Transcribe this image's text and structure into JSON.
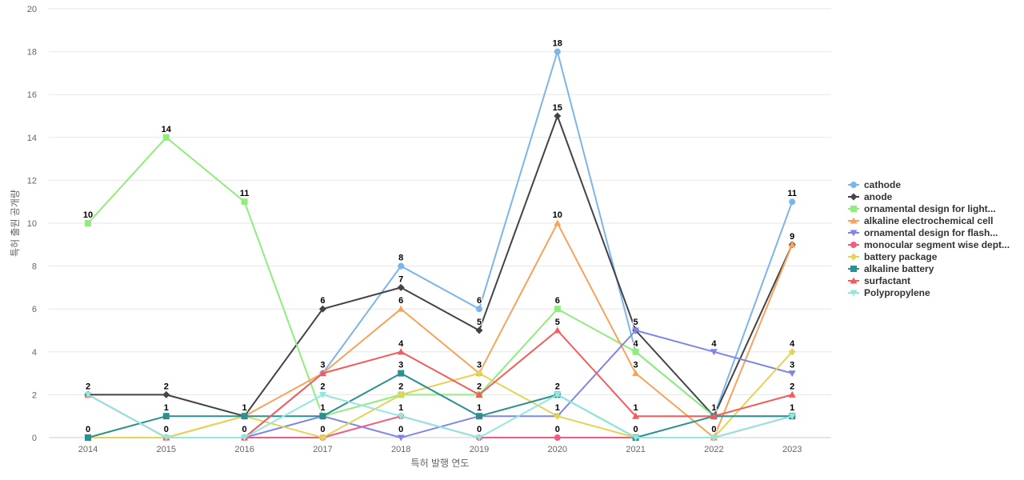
{
  "chart_data": {
    "type": "line",
    "title": "",
    "xlabel": "특허 발행 연도",
    "ylabel": "특허 출원 공개량",
    "x": [
      "2014",
      "2015",
      "2016",
      "2017",
      "2018",
      "2019",
      "2020",
      "2021",
      "2022",
      "2023"
    ],
    "ylim": [
      0,
      20
    ],
    "yticks": [
      0,
      2,
      4,
      6,
      8,
      10,
      12,
      14,
      16,
      18,
      20
    ],
    "grid": true,
    "legend_position": "right",
    "series": [
      {
        "name": "cathode",
        "color": "#7cb5ec",
        "marker": "circle",
        "values": [
          2,
          0,
          0,
          3,
          8,
          6,
          18,
          4,
          1,
          11
        ]
      },
      {
        "name": "anode",
        "color": "#434348",
        "marker": "diamond",
        "values": [
          2,
          2,
          1,
          6,
          7,
          5,
          15,
          5,
          1,
          9
        ]
      },
      {
        "name": "ornamental design for light...",
        "color": "#90ed7d",
        "marker": "square",
        "values": [
          10,
          14,
          11,
          1,
          2,
          2,
          6,
          4,
          1,
          1
        ]
      },
      {
        "name": "alkaline electrochemical cell",
        "color": "#f7a35c",
        "marker": "triangle",
        "values": [
          0,
          0,
          1,
          3,
          6,
          3,
          10,
          3,
          0,
          9
        ]
      },
      {
        "name": "ornamental design for flash...",
        "color": "#8085e9",
        "marker": "triangle-down",
        "values": [
          0,
          0,
          0,
          1,
          0,
          1,
          1,
          5,
          4,
          3
        ]
      },
      {
        "name": "monocular segment wise dept...",
        "color": "#f15c80",
        "marker": "circle",
        "values": [
          0,
          0,
          0,
          0,
          1,
          0,
          0,
          0,
          0,
          1
        ]
      },
      {
        "name": "battery package",
        "color": "#e4d354",
        "marker": "diamond",
        "values": [
          0,
          0,
          1,
          0,
          2,
          3,
          1,
          0,
          0,
          4
        ]
      },
      {
        "name": "alkaline battery",
        "color": "#2b908f",
        "marker": "square",
        "values": [
          0,
          1,
          1,
          1,
          3,
          1,
          2,
          0,
          1,
          1
        ]
      },
      {
        "name": "surfactant",
        "color": "#f45b5b",
        "marker": "triangle",
        "values": [
          2,
          0,
          0,
          3,
          4,
          2,
          5,
          1,
          1,
          2
        ]
      },
      {
        "name": "Polypropylene",
        "color": "#91e8e1",
        "marker": "triangle-down",
        "values": [
          2,
          0,
          0,
          2,
          1,
          0,
          2,
          0,
          0,
          1
        ]
      }
    ],
    "data_labels": [
      {
        "x": "2014",
        "value": 10
      },
      {
        "x": "2014",
        "value": 2
      },
      {
        "x": "2014",
        "value": 0
      },
      {
        "x": "2015",
        "value": 14
      },
      {
        "x": "2015",
        "value": 2
      },
      {
        "x": "2015",
        "value": 1
      },
      {
        "x": "2015",
        "value": 0
      },
      {
        "x": "2016",
        "value": 11
      },
      {
        "x": "2016",
        "value": 1
      },
      {
        "x": "2016",
        "value": 0
      },
      {
        "x": "2017",
        "value": 6
      },
      {
        "x": "2017",
        "value": 3
      },
      {
        "x": "2017",
        "value": 2
      },
      {
        "x": "2017",
        "value": 1
      },
      {
        "x": "2017",
        "value": 0
      },
      {
        "x": "2018",
        "value": 8
      },
      {
        "x": "2018",
        "value": 7
      },
      {
        "x": "2018",
        "value": 6
      },
      {
        "x": "2018",
        "value": 4
      },
      {
        "x": "2018",
        "value": 3
      },
      {
        "x": "2018",
        "value": 2
      },
      {
        "x": "2018",
        "value": 1
      },
      {
        "x": "2018",
        "value": 0
      },
      {
        "x": "2019",
        "value": 6
      },
      {
        "x": "2019",
        "value": 5
      },
      {
        "x": "2019",
        "value": 3
      },
      {
        "x": "2019",
        "value": 2
      },
      {
        "x": "2019",
        "value": 1
      },
      {
        "x": "2019",
        "value": 0
      },
      {
        "x": "2020",
        "value": 18
      },
      {
        "x": "2020",
        "value": 15
      },
      {
        "x": "2020",
        "value": 10
      },
      {
        "x": "2020",
        "value": 6
      },
      {
        "x": "2020",
        "value": 5
      },
      {
        "x": "2020",
        "value": 2
      },
      {
        "x": "2020",
        "value": 1
      },
      {
        "x": "2020",
        "value": 0
      },
      {
        "x": "2021",
        "value": 5
      },
      {
        "x": "2021",
        "value": 4
      },
      {
        "x": "2021",
        "value": 3
      },
      {
        "x": "2021",
        "value": 1
      },
      {
        "x": "2021",
        "value": 0
      },
      {
        "x": "2022",
        "value": 4
      },
      {
        "x": "2022",
        "value": 1
      },
      {
        "x": "2022",
        "value": 0
      },
      {
        "x": "2023",
        "value": 11
      },
      {
        "x": "2023",
        "value": 9
      },
      {
        "x": "2023",
        "value": 4
      },
      {
        "x": "2023",
        "value": 3
      },
      {
        "x": "2023",
        "value": 2
      },
      {
        "x": "2023",
        "value": 1
      }
    ]
  }
}
